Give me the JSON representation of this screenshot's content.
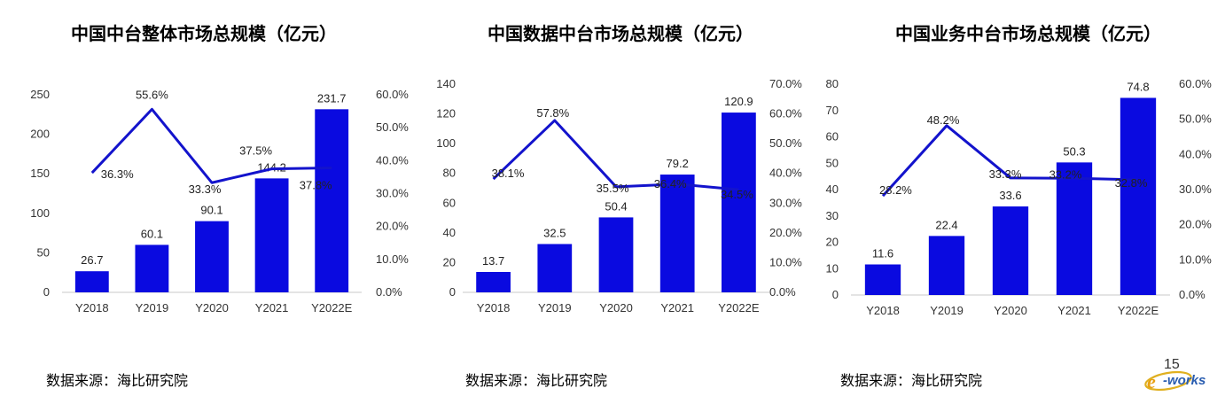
{
  "chart_data": [
    {
      "type": "bar+line",
      "title": "中国中台整体市场总规模（亿元）",
      "categories": [
        "Y2018",
        "Y2019",
        "Y2020",
        "Y2021",
        "Y2022E"
      ],
      "series": [
        {
          "type": "bar",
          "axis": "left",
          "values": [
            26.7,
            60.1,
            90.1,
            144.2,
            231.7
          ],
          "labels": [
            "26.7",
            "60.1",
            "90.1",
            "144.2",
            "231.7"
          ]
        },
        {
          "type": "line",
          "axis": "right",
          "values": [
            36.3,
            55.6,
            33.3,
            37.5,
            37.8
          ],
          "labels": [
            "36.3%",
            "55.6%",
            "33.3%",
            "37.5%",
            "37.8%"
          ]
        }
      ],
      "ylim_left": [
        0,
        250
      ],
      "yticks_left": [
        "0",
        "50",
        "100",
        "150",
        "200",
        "250"
      ],
      "ylim_right": [
        0,
        60
      ],
      "yticks_right": [
        "0.0%",
        "10.0%",
        "20.0%",
        "30.0%",
        "40.0%",
        "50.0%",
        "60.0%"
      ],
      "grid": false,
      "source": "数据来源：海比研究院"
    },
    {
      "type": "bar+line",
      "title": "中国数据中台市场总规模（亿元）",
      "categories": [
        "Y2018",
        "Y2019",
        "Y2020",
        "Y2021",
        "Y2022E"
      ],
      "series": [
        {
          "type": "bar",
          "axis": "left",
          "values": [
            13.7,
            32.5,
            50.4,
            79.2,
            120.9
          ],
          "labels": [
            "13.7",
            "32.5",
            "50.4",
            "79.2",
            "120.9"
          ]
        },
        {
          "type": "line",
          "axis": "right",
          "values": [
            38.1,
            57.8,
            35.5,
            36.4,
            34.5
          ],
          "labels": [
            "38.1%",
            "57.8%",
            "35.5%",
            "36.4%",
            "34.5%"
          ]
        }
      ],
      "ylim_left": [
        0,
        140
      ],
      "yticks_left": [
        "0",
        "20",
        "40",
        "60",
        "80",
        "100",
        "120",
        "140"
      ],
      "ylim_right": [
        0,
        70
      ],
      "yticks_right": [
        "0.0%",
        "10.0%",
        "20.0%",
        "30.0%",
        "40.0%",
        "50.0%",
        "60.0%",
        "70.0%"
      ],
      "grid": false,
      "source": "数据来源：海比研究院"
    },
    {
      "type": "bar+line",
      "title": "中国业务中台市场总规模（亿元）",
      "categories": [
        "Y2018",
        "Y2019",
        "Y2020",
        "Y2021",
        "Y2022E"
      ],
      "series": [
        {
          "type": "bar",
          "axis": "left",
          "values": [
            11.6,
            22.4,
            33.6,
            50.3,
            74.8
          ],
          "labels": [
            "11.6",
            "22.4",
            "33.6",
            "50.3",
            "74.8"
          ]
        },
        {
          "type": "line",
          "axis": "right",
          "values": [
            28.2,
            48.2,
            33.3,
            33.2,
            32.8
          ],
          "labels": [
            "28.2%",
            "48.2%",
            "33.3%",
            "33.2%",
            "32.8%"
          ]
        }
      ],
      "ylim_left": [
        0,
        80
      ],
      "yticks_left": [
        "0",
        "10",
        "20",
        "30",
        "40",
        "50",
        "60",
        "70",
        "80"
      ],
      "ylim_right": [
        0,
        60
      ],
      "yticks_right": [
        "0.0%",
        "10.0%",
        "20.0%",
        "30.0%",
        "40.0%",
        "50.0%",
        "60.0%"
      ],
      "grid": false,
      "source": "数据来源：海比研究院"
    }
  ],
  "colors": {
    "bar": "#0a0ae0",
    "line": "#1313cc",
    "text": "#333333"
  },
  "footer": {
    "page_number": "15",
    "logo_text": "e-works"
  }
}
